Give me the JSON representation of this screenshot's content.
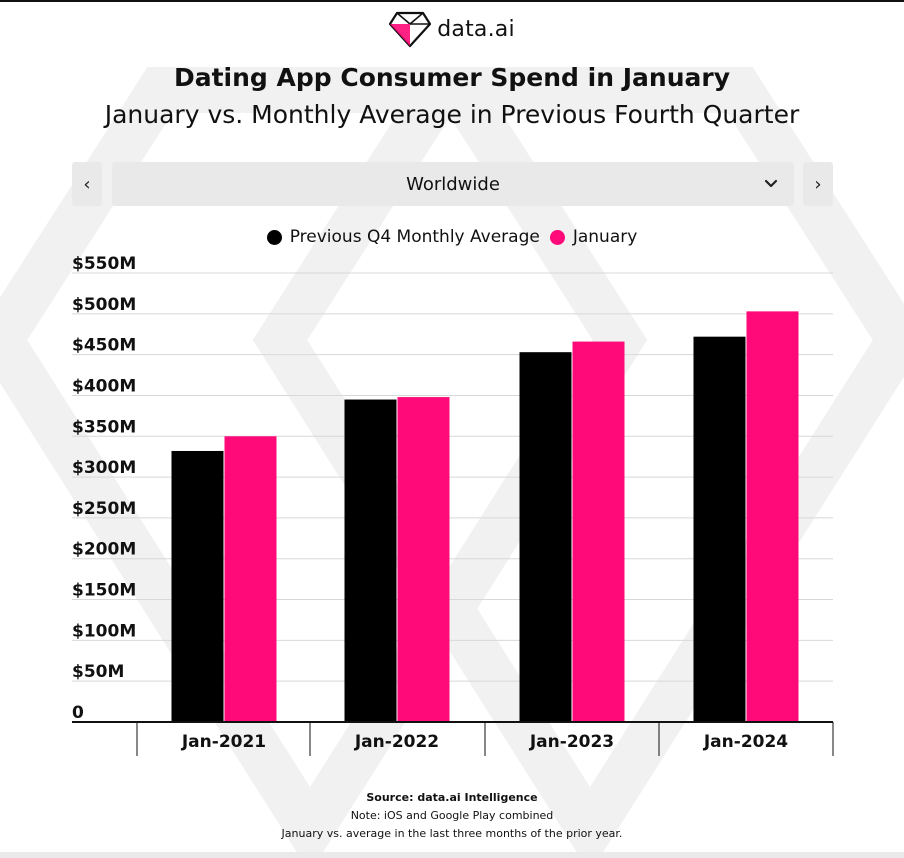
{
  "brand": {
    "name": "data.ai",
    "logo_icon": "diamond-logo-icon",
    "accent": "#ff0a78"
  },
  "header": {
    "title": "Dating App Consumer Spend in January",
    "subtitle": "January vs. Monthly Average in Previous Fourth Quarter"
  },
  "controls": {
    "prev_icon": "chevron-left-icon",
    "next_icon": "chevron-right-icon",
    "prev_label": "‹",
    "next_label": "›",
    "region": "Worldwide",
    "dropdown_icon": "chevron-down-icon"
  },
  "chart_data": {
    "type": "bar",
    "title": "Dating App Consumer Spend in January",
    "subtitle": "January vs. Monthly Average in Previous Fourth Quarter",
    "categories": [
      "Jan-2021",
      "Jan-2022",
      "Jan-2023",
      "Jan-2024"
    ],
    "series": [
      {
        "name": "Previous Q4 Monthly Average",
        "color": "#000000",
        "values": [
          332,
          395,
          453,
          472
        ]
      },
      {
        "name": "January",
        "color": "#ff0a78",
        "values": [
          350,
          398,
          466,
          503
        ]
      }
    ],
    "ylim": [
      0,
      550
    ],
    "yticks": [
      0,
      50,
      100,
      150,
      200,
      250,
      300,
      350,
      400,
      450,
      500,
      550
    ],
    "ytick_labels": [
      "0",
      "$50M",
      "$100M",
      "$150M",
      "$200M",
      "$250M",
      "$300M",
      "$350M",
      "$400M",
      "$450M",
      "$500M",
      "$550M"
    ],
    "grid": true,
    "legend_position": "top-center",
    "xlabel": "",
    "ylabel": ""
  },
  "footer": {
    "source": "Source: data.ai Intelligence",
    "note1": "Note: iOS and Google Play combined",
    "note2": "January vs. average in the last three months of the prior year."
  }
}
